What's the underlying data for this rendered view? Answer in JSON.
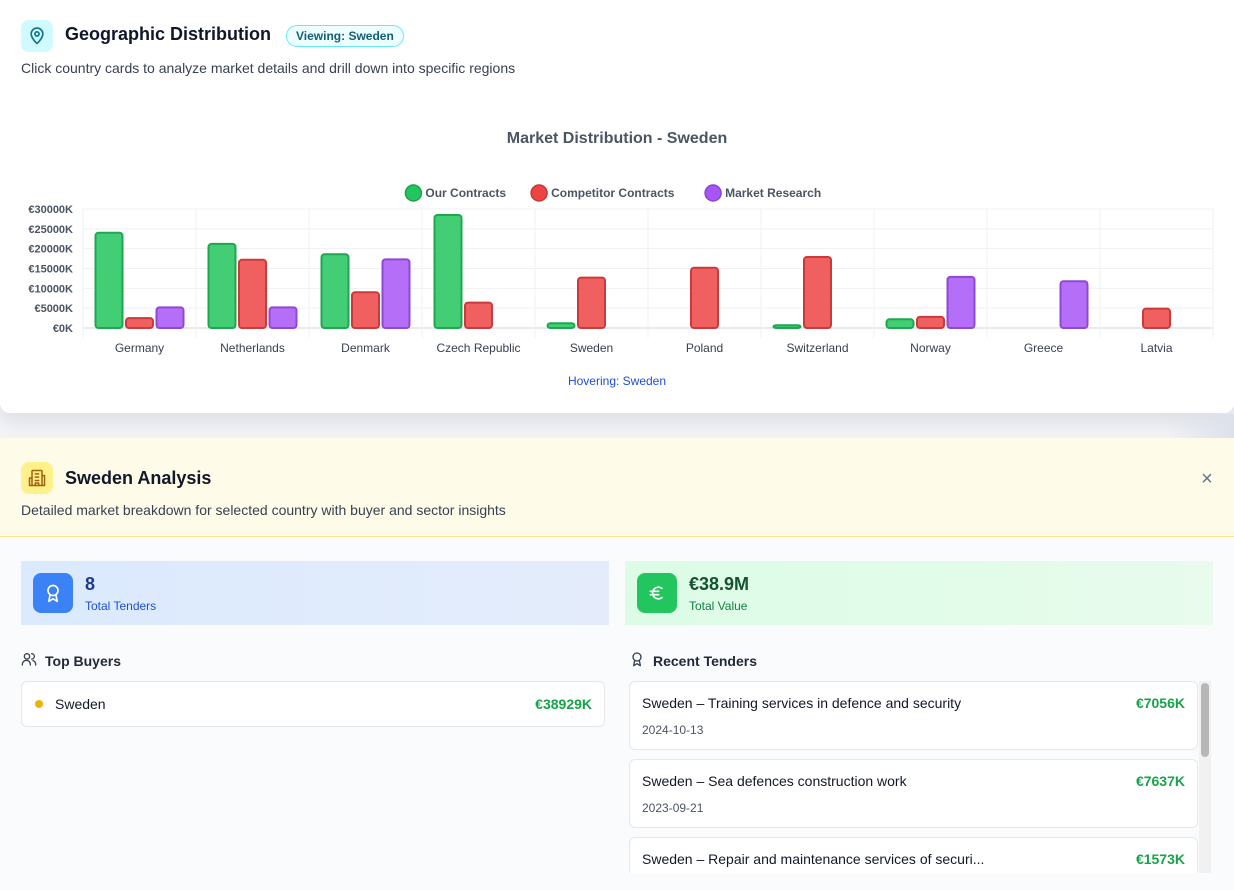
{
  "header": {
    "icon": "map-pin-icon",
    "title": "Geographic Distribution",
    "badge": "Viewing: Sweden",
    "subtitle": "Click country cards to analyze market details and drill down into specific regions"
  },
  "chart_data": {
    "type": "bar",
    "title": "Market Distribution - Sweden",
    "categories": [
      "Germany",
      "Netherlands",
      "Denmark",
      "Czech Republic",
      "Sweden",
      "Poland",
      "Switzerland",
      "Norway",
      "Greece",
      "Latvia"
    ],
    "series": [
      {
        "name": "Our Contracts",
        "color": "#22c55e",
        "values": [
          24000,
          21200,
          18600,
          28500,
          1200,
          0,
          700,
          2200,
          0,
          0
        ]
      },
      {
        "name": "Competitor Contracts",
        "color": "#ef4444",
        "values": [
          2500,
          17200,
          9000,
          6400,
          12700,
          15200,
          17900,
          2800,
          0,
          4900
        ]
      },
      {
        "name": "Market Research",
        "color": "#a855f7",
        "values": [
          5200,
          5200,
          17300,
          0,
          0,
          0,
          0,
          12900,
          11800,
          0
        ]
      }
    ],
    "y_ticks": [
      "€0K",
      "€5000K",
      "€10000K",
      "€15000K",
      "€20000K",
      "€25000K",
      "€30000K"
    ],
    "ylim": [
      0,
      30000
    ],
    "legend_position": "top",
    "grid": true,
    "hover_text": "Hovering: Sweden"
  },
  "analysis": {
    "icon": "building-icon",
    "title": "Sweden Analysis",
    "subtitle": "Detailed market breakdown for selected country with buyer and sector insights",
    "close_label": "×",
    "stats": [
      {
        "icon": "award-icon",
        "value": "8",
        "label": "Total Tenders",
        "color": "#3b82f6"
      },
      {
        "icon": "euro-icon",
        "value": "€38.9M",
        "label": "Total Value",
        "color": "#22c55e"
      }
    ],
    "top_buyers_title": "Top Buyers",
    "buyers": [
      {
        "name": "Sweden",
        "value": "€38929K",
        "dot_color": "#eab308"
      }
    ],
    "recent_tenders_title": "Recent Tenders",
    "tenders": [
      {
        "title": "Sweden – Training services in defence and security",
        "value": "€7056K",
        "date": "2024-10-13"
      },
      {
        "title": "Sweden – Sea defences construction work",
        "value": "€7637K",
        "date": "2023-09-21"
      },
      {
        "title": "Sweden – Repair and maintenance services of securi...",
        "value": "€1573K",
        "date": ""
      }
    ]
  }
}
